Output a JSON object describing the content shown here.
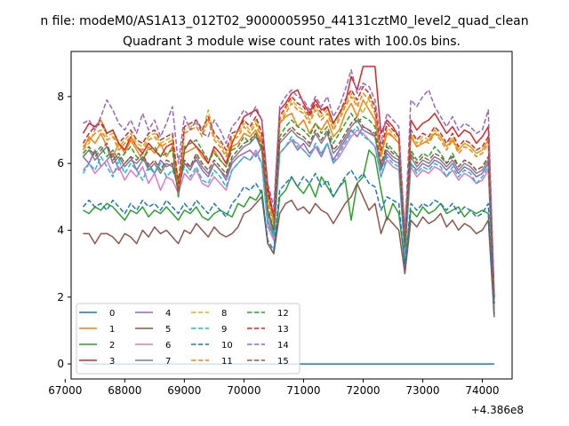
{
  "chart_data": {
    "type": "line",
    "suptitle": "n file: modeM0/AS1A13_012T02_9000005950_44131cztM0_level2_quad_clean",
    "title": "Quadrant 3 module wise count rates with 100.0s bins.",
    "xlabel": "",
    "ylabel": "",
    "x_offset_label": "+4.386e8",
    "xlim": [
      67100,
      74500
    ],
    "ylim": [
      -0.45,
      9.35
    ],
    "x_ticks": [
      67000,
      68000,
      69000,
      70000,
      71000,
      72000,
      73000,
      74000
    ],
    "x_tick_labels": [
      "67000",
      "68000",
      "69000",
      "70000",
      "71000",
      "72000",
      "73000",
      "74000"
    ],
    "y_ticks": [
      0,
      2,
      4,
      6,
      8
    ],
    "y_tick_labels": [
      "0",
      "2",
      "4",
      "6",
      "8"
    ],
    "x_start": 67300,
    "x_step": 100,
    "legend": {
      "location": "lower-left",
      "columns": 4,
      "entries": [
        "0",
        "1",
        "2",
        "3",
        "4",
        "5",
        "6",
        "7",
        "8",
        "9",
        "10",
        "11",
        "12",
        "13",
        "14",
        "15"
      ]
    },
    "series": [
      {
        "name": "0",
        "color": "#1f77b4",
        "dash": "solid",
        "values": [
          0,
          0,
          0,
          0,
          0,
          0,
          0,
          0,
          0,
          0,
          0,
          0,
          0,
          0,
          0,
          0,
          0,
          0,
          0,
          0,
          0,
          0,
          0,
          0,
          0,
          0,
          0,
          0,
          0,
          0,
          0,
          0,
          0,
          0,
          0,
          0,
          0,
          0,
          0,
          0,
          0,
          0,
          0,
          0,
          0,
          0,
          0,
          0,
          0,
          0,
          0,
          0,
          0,
          0,
          0,
          0,
          0,
          0,
          0,
          0,
          0,
          0,
          0,
          0,
          0,
          0,
          0,
          0,
          0,
          0
        ]
      },
      {
        "name": "1",
        "color": "#ff7f0e",
        "dash": "solid",
        "values": [
          6.4,
          6.8,
          6.6,
          6.9,
          6.5,
          6.2,
          6.6,
          6.3,
          6.7,
          6.4,
          6.1,
          6.5,
          6.3,
          6.6,
          6.2,
          6.5,
          5.5,
          6.3,
          6.4,
          6.5,
          6.2,
          6.0,
          6.4,
          6.1,
          5.9,
          6.5,
          6.6,
          6.9,
          6.8,
          7.0,
          6.6,
          5.0,
          4.2,
          7.2,
          7.4,
          7.5,
          7.1,
          7.3,
          6.9,
          7.2,
          7.0,
          7.3,
          6.8,
          7.0,
          7.5,
          7.8,
          7.4,
          7.9,
          7.6,
          7.3,
          6.2,
          6.9,
          6.8,
          6.6,
          4.0,
          6.8,
          6.5,
          6.6,
          6.7,
          6.9,
          6.8,
          6.5,
          6.7,
          6.4,
          6.6,
          6.5,
          6.3,
          6.4,
          6.7,
          2.0
        ]
      },
      {
        "name": "2",
        "color": "#2ca02c",
        "dash": "solid",
        "values": [
          4.6,
          4.5,
          4.7,
          4.6,
          4.8,
          4.7,
          4.5,
          4.3,
          4.6,
          4.5,
          4.7,
          4.4,
          4.6,
          4.5,
          4.7,
          4.5,
          4.3,
          4.6,
          4.5,
          4.7,
          4.4,
          4.3,
          4.5,
          4.6,
          4.5,
          4.4,
          4.8,
          4.7,
          5.0,
          4.9,
          5.2,
          3.6,
          3.3,
          5.0,
          5.2,
          5.6,
          5.3,
          5.1,
          5.4,
          5.0,
          5.6,
          5.3,
          5.0,
          5.3,
          5.5,
          4.3,
          5.4,
          5.6,
          6.4,
          6.2,
          5.2,
          4.3,
          4.8,
          4.5,
          3.0,
          4.6,
          4.4,
          4.7,
          4.5,
          4.6,
          4.8,
          4.5,
          4.6,
          4.7,
          4.4,
          4.6,
          4.5,
          4.6,
          4.5,
          1.5
        ]
      },
      {
        "name": "3",
        "color": "#d62728",
        "dash": "solid",
        "values": [
          6.9,
          7.2,
          7.1,
          7.3,
          6.9,
          7.0,
          6.6,
          6.4,
          6.8,
          6.5,
          6.3,
          6.6,
          6.4,
          6.2,
          6.5,
          6.6,
          5.0,
          6.4,
          6.7,
          6.5,
          6.3,
          6.0,
          6.5,
          6.3,
          6.0,
          6.6,
          7.0,
          7.4,
          7.5,
          7.6,
          7.3,
          5.3,
          4.4,
          7.6,
          7.8,
          8.1,
          8.2,
          7.8,
          7.5,
          7.9,
          7.6,
          7.7,
          7.2,
          7.5,
          7.8,
          8.6,
          8.2,
          8.9,
          8.9,
          8.9,
          6.9,
          7.3,
          7.1,
          6.8,
          3.5,
          7.3,
          7.0,
          7.2,
          7.3,
          7.5,
          7.2,
          6.9,
          7.1,
          6.8,
          7.0,
          6.9,
          6.6,
          6.8,
          7.1,
          2.0
        ]
      },
      {
        "name": "4",
        "color": "#9467bd",
        "dash": "solid",
        "values": [
          6.2,
          6.0,
          6.4,
          5.9,
          6.1,
          6.3,
          5.8,
          6.0,
          6.2,
          5.8,
          6.1,
          6.0,
          5.7,
          6.1,
          5.9,
          6.0,
          5.2,
          6.0,
          5.9,
          6.1,
          5.8,
          5.6,
          6.0,
          5.8,
          5.5,
          6.0,
          6.2,
          6.3,
          6.4,
          6.2,
          6.5,
          4.3,
          3.8,
          6.3,
          6.5,
          6.7,
          6.4,
          6.6,
          6.3,
          6.5,
          6.2,
          6.6,
          6.1,
          6.4,
          6.7,
          7.0,
          6.8,
          7.1,
          7.0,
          6.8,
          5.8,
          6.3,
          6.1,
          6.0,
          3.4,
          6.0,
          5.8,
          6.0,
          5.9,
          6.1,
          6.0,
          5.8,
          6.0,
          5.7,
          5.9,
          5.8,
          5.6,
          5.7,
          6.0,
          1.8
        ]
      },
      {
        "name": "5",
        "color": "#8c564b",
        "dash": "solid",
        "values": [
          3.9,
          3.9,
          3.6,
          3.9,
          3.9,
          3.8,
          3.6,
          3.9,
          3.8,
          3.6,
          4.0,
          3.8,
          4.1,
          3.9,
          4.0,
          3.8,
          3.6,
          4.0,
          3.9,
          4.2,
          4.0,
          3.8,
          4.1,
          3.9,
          3.8,
          3.9,
          4.1,
          4.5,
          4.6,
          4.8,
          5.0,
          3.6,
          3.3,
          4.5,
          4.8,
          4.9,
          4.6,
          4.7,
          4.5,
          4.8,
          4.6,
          4.5,
          4.2,
          4.5,
          4.8,
          5.0,
          5.4,
          5.0,
          4.6,
          4.8,
          3.9,
          4.4,
          4.2,
          4.0,
          2.7,
          4.3,
          4.1,
          4.4,
          4.2,
          4.3,
          4.5,
          4.1,
          4.3,
          4.0,
          4.2,
          4.1,
          3.9,
          4.0,
          4.3,
          1.4
        ]
      },
      {
        "name": "6",
        "color": "#e377c2",
        "dash": "solid",
        "values": [
          5.8,
          6.0,
          5.7,
          5.9,
          6.1,
          5.7,
          5.9,
          5.5,
          5.8,
          5.6,
          5.9,
          5.4,
          5.7,
          5.2,
          5.6,
          5.5,
          5.1,
          5.7,
          5.5,
          5.8,
          5.4,
          5.3,
          5.6,
          5.4,
          5.2,
          5.8,
          6.0,
          6.2,
          6.1,
          6.4,
          6.0,
          4.1,
          3.7,
          6.3,
          6.5,
          6.7,
          6.6,
          6.4,
          6.2,
          6.5,
          6.3,
          6.6,
          6.0,
          6.2,
          6.5,
          6.8,
          7.0,
          6.9,
          6.7,
          6.5,
          5.6,
          6.1,
          5.9,
          5.8,
          3.2,
          5.9,
          5.6,
          5.8,
          5.7,
          5.9,
          5.8,
          5.6,
          5.8,
          5.5,
          5.7,
          5.6,
          5.4,
          5.5,
          5.8,
          1.7
        ]
      },
      {
        "name": "7",
        "color": "#7f7f7f",
        "dash": "solid",
        "values": [
          6.2,
          6.4,
          6.1,
          6.3,
          6.5,
          6.0,
          6.2,
          5.9,
          6.1,
          6.0,
          6.2,
          5.8,
          6.0,
          5.7,
          6.0,
          5.9,
          5.3,
          6.0,
          5.8,
          6.2,
          5.9,
          5.7,
          6.0,
          5.8,
          5.6,
          6.1,
          6.3,
          6.5,
          6.6,
          6.8,
          6.4,
          4.5,
          3.9,
          6.6,
          6.8,
          7.0,
          6.8,
          6.7,
          6.5,
          6.9,
          6.6,
          6.9,
          6.3,
          6.5,
          6.8,
          7.1,
          7.3,
          7.0,
          6.9,
          6.8,
          5.9,
          6.4,
          6.2,
          6.1,
          3.4,
          6.2,
          5.9,
          6.1,
          6.0,
          6.2,
          6.1,
          5.9,
          6.1,
          5.8,
          6.0,
          5.9,
          5.7,
          5.8,
          6.1,
          1.8
        ]
      },
      {
        "name": "8",
        "color": "#bcbd22",
        "dash": "dashed",
        "values": [
          6.4,
          6.6,
          7.0,
          7.3,
          6.8,
          6.9,
          6.5,
          6.7,
          6.9,
          6.6,
          6.5,
          6.8,
          6.9,
          6.6,
          6.7,
          6.8,
          5.3,
          7.0,
          7.1,
          7.2,
          6.9,
          7.6,
          6.8,
          6.6,
          6.3,
          6.8,
          6.9,
          7.2,
          7.0,
          7.3,
          6.8,
          5.0,
          4.3,
          7.3,
          7.6,
          7.9,
          7.7,
          7.6,
          7.3,
          7.7,
          7.4,
          7.6,
          7.1,
          7.4,
          7.8,
          8.1,
          7.8,
          7.5,
          8.0,
          7.6,
          6.3,
          7.1,
          6.9,
          6.7,
          3.7,
          6.9,
          6.6,
          6.8,
          6.7,
          7.0,
          6.8,
          6.5,
          6.8,
          6.4,
          6.6,
          6.5,
          6.3,
          6.4,
          6.7,
          1.9
        ]
      },
      {
        "name": "9",
        "color": "#17becf",
        "dash": "dashed",
        "values": [
          5.7,
          6.0,
          5.8,
          6.2,
          5.9,
          5.6,
          6.1,
          5.7,
          6.0,
          5.8,
          5.5,
          5.9,
          5.7,
          6.0,
          5.6,
          5.8,
          5.4,
          5.9,
          5.6,
          5.9,
          5.5,
          5.4,
          5.8,
          5.6,
          5.3,
          5.8,
          6.0,
          6.2,
          6.1,
          6.3,
          6.0,
          4.2,
          3.8,
          6.3,
          6.5,
          6.8,
          6.5,
          6.4,
          6.2,
          6.6,
          6.3,
          6.6,
          6.0,
          6.3,
          6.6,
          6.9,
          7.1,
          6.8,
          6.7,
          6.5,
          5.6,
          6.2,
          6.0,
          5.9,
          3.3,
          6.0,
          5.7,
          5.9,
          5.8,
          6.0,
          5.9,
          5.6,
          5.9,
          5.6,
          5.8,
          5.7,
          5.4,
          5.6,
          5.9,
          1.7
        ]
      },
      {
        "name": "10",
        "color": "#1f77b4",
        "dash": "dashed",
        "values": [
          4.7,
          4.9,
          4.7,
          4.8,
          4.6,
          4.9,
          4.7,
          4.5,
          4.8,
          4.6,
          4.9,
          4.7,
          4.8,
          4.6,
          4.9,
          4.7,
          4.5,
          4.8,
          4.6,
          4.9,
          4.7,
          4.5,
          4.8,
          4.6,
          4.4,
          4.8,
          5.0,
          5.3,
          5.2,
          5.4,
          5.1,
          3.7,
          3.4,
          5.2,
          5.4,
          5.6,
          5.3,
          5.6,
          5.4,
          5.7,
          5.3,
          5.5,
          5.0,
          5.3,
          5.6,
          5.8,
          5.5,
          5.7,
          5.4,
          5.3,
          4.6,
          5.0,
          4.9,
          4.8,
          2.9,
          4.8,
          4.6,
          4.8,
          4.7,
          4.9,
          4.8,
          4.6,
          4.8,
          4.5,
          4.7,
          4.6,
          4.4,
          4.5,
          4.8,
          1.5
        ]
      },
      {
        "name": "11",
        "color": "#ff7f0e",
        "dash": "dashed",
        "values": [
          6.5,
          6.7,
          6.9,
          7.0,
          6.7,
          6.8,
          6.4,
          6.6,
          6.8,
          6.5,
          6.4,
          6.7,
          6.8,
          6.5,
          6.6,
          6.7,
          5.2,
          6.9,
          7.0,
          7.1,
          6.8,
          7.3,
          6.7,
          6.5,
          6.2,
          6.7,
          6.8,
          7.1,
          6.9,
          7.2,
          6.7,
          4.9,
          4.2,
          7.2,
          7.5,
          7.8,
          7.6,
          7.5,
          7.2,
          7.6,
          7.3,
          7.5,
          7.0,
          7.3,
          7.7,
          8.0,
          7.7,
          8.1,
          7.9,
          7.5,
          6.2,
          7.0,
          6.8,
          6.6,
          3.6,
          6.8,
          6.5,
          6.7,
          6.6,
          6.9,
          6.7,
          6.4,
          6.7,
          6.3,
          6.5,
          6.4,
          6.2,
          6.3,
          6.6,
          1.9
        ]
      },
      {
        "name": "12",
        "color": "#2ca02c",
        "dash": "dashed",
        "values": [
          6.2,
          6.4,
          6.3,
          6.5,
          6.2,
          6.4,
          6.1,
          6.3,
          6.5,
          6.2,
          6.1,
          6.4,
          6.5,
          6.2,
          6.3,
          6.4,
          5.0,
          6.5,
          6.6,
          6.7,
          6.4,
          6.1,
          6.3,
          6.1,
          5.9,
          6.4,
          6.5,
          6.8,
          6.6,
          6.9,
          6.4,
          4.7,
          4.0,
          6.8,
          7.1,
          7.3,
          7.1,
          7.0,
          6.8,
          7.2,
          6.9,
          7.1,
          6.6,
          6.9,
          7.2,
          7.5,
          7.2,
          7.4,
          7.3,
          7.1,
          5.9,
          6.6,
          6.4,
          6.2,
          3.5,
          6.4,
          6.1,
          6.3,
          6.2,
          6.5,
          6.3,
          6.0,
          6.3,
          5.9,
          6.1,
          6.0,
          5.8,
          5.9,
          6.2,
          1.8
        ]
      },
      {
        "name": "13",
        "color": "#d62728",
        "dash": "dashed",
        "values": [
          6.6,
          6.9,
          7.1,
          7.2,
          6.9,
          7.0,
          6.6,
          6.8,
          7.0,
          6.7,
          6.6,
          6.9,
          7.0,
          6.7,
          6.8,
          6.9,
          5.4,
          7.1,
          7.2,
          7.3,
          7.0,
          7.4,
          6.9,
          6.7,
          6.4,
          6.9,
          7.0,
          7.3,
          7.1,
          7.4,
          6.9,
          5.1,
          4.4,
          7.4,
          7.7,
          8.0,
          7.8,
          7.7,
          7.4,
          7.8,
          7.5,
          7.7,
          7.2,
          7.5,
          7.9,
          8.2,
          7.9,
          8.3,
          8.1,
          7.7,
          6.4,
          7.2,
          7.0,
          6.8,
          3.8,
          7.0,
          6.7,
          6.9,
          6.8,
          7.1,
          6.9,
          6.6,
          6.9,
          6.5,
          6.7,
          6.6,
          6.4,
          6.5,
          6.8,
          2.0
        ]
      },
      {
        "name": "14",
        "color": "#9467bd",
        "dash": "dashed",
        "values": [
          7.2,
          7.3,
          7.0,
          7.4,
          7.9,
          7.6,
          7.2,
          7.0,
          7.3,
          6.9,
          7.5,
          7.0,
          7.3,
          6.8,
          7.2,
          7.7,
          6.0,
          7.4,
          7.0,
          7.3,
          6.9,
          6.8,
          7.3,
          7.0,
          6.6,
          7.1,
          7.3,
          7.6,
          7.4,
          7.7,
          7.3,
          5.4,
          4.7,
          7.7,
          8.0,
          8.2,
          8.0,
          7.9,
          7.6,
          8.0,
          7.7,
          8.0,
          7.4,
          7.7,
          8.2,
          8.8,
          8.1,
          8.4,
          8.3,
          7.9,
          6.6,
          7.5,
          7.3,
          7.1,
          3.9,
          7.9,
          7.7,
          8.0,
          8.2,
          7.7,
          7.4,
          7.1,
          7.4,
          7.0,
          7.2,
          7.1,
          6.9,
          7.0,
          7.6,
          2.1
        ]
      },
      {
        "name": "15",
        "color": "#8c564b",
        "dash": "dashed",
        "values": [
          6.3,
          6.5,
          6.2,
          6.4,
          6.6,
          6.1,
          6.3,
          6.0,
          6.2,
          6.1,
          6.3,
          5.9,
          6.1,
          5.8,
          6.1,
          6.0,
          5.2,
          6.1,
          5.9,
          6.3,
          6.0,
          5.8,
          6.1,
          5.9,
          5.7,
          6.2,
          6.4,
          6.6,
          6.7,
          6.9,
          6.5,
          4.6,
          4.0,
          6.7,
          6.9,
          7.1,
          6.9,
          6.8,
          6.6,
          7.0,
          6.7,
          7.0,
          6.4,
          6.6,
          6.9,
          7.2,
          7.4,
          7.1,
          7.0,
          6.9,
          6.0,
          6.5,
          6.3,
          6.2,
          3.5,
          6.3,
          6.0,
          6.2,
          6.1,
          6.3,
          6.2,
          6.0,
          6.2,
          5.9,
          6.1,
          6.0,
          5.8,
          5.9,
          6.2,
          1.8
        ]
      }
    ]
  }
}
